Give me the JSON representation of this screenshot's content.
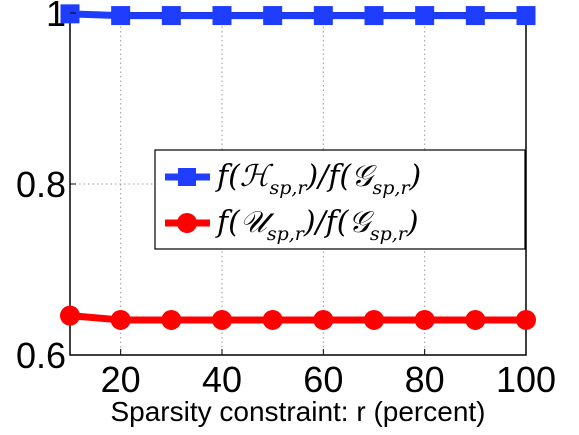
{
  "chart_data": {
    "type": "line",
    "title": "",
    "xlabel": "Sparsity constraint:  r (percent)",
    "ylabel": "",
    "x": [
      10,
      20,
      30,
      40,
      50,
      60,
      70,
      80,
      90,
      100
    ],
    "xlim": [
      10,
      100
    ],
    "ylim": [
      0.6,
      1.0
    ],
    "xticks": [
      "20",
      "40",
      "60",
      "80",
      "100"
    ],
    "yticks": [
      "0.6",
      "0.8",
      "1"
    ],
    "grid": true,
    "legend_position": "center-right",
    "series": [
      {
        "name": "f(ℋ_sp,r)/f(𝒢_sp,r)",
        "legend_main_1": "f(ℋ",
        "legend_sub_1": "sp,r",
        "legend_main_2": ")/f(𝒢",
        "legend_sub_2": "sp,r",
        "legend_main_3": ")",
        "marker": "square",
        "color": "#1f3dff",
        "values": [
          0.999,
          0.997,
          0.997,
          0.997,
          0.997,
          0.997,
          0.997,
          0.997,
          0.997,
          0.997
        ]
      },
      {
        "name": "f(𝒰_sp,r)/f(𝒢_sp,r)",
        "legend_main_1": "f(𝒰",
        "legend_sub_1": "sp,r",
        "legend_main_2": ")/f(𝒢",
        "legend_sub_2": "sp,r",
        "legend_main_3": ")",
        "marker": "circle",
        "color": "#ff0000",
        "values": [
          0.646,
          0.641,
          0.641,
          0.641,
          0.641,
          0.641,
          0.641,
          0.641,
          0.641,
          0.641
        ]
      }
    ]
  }
}
